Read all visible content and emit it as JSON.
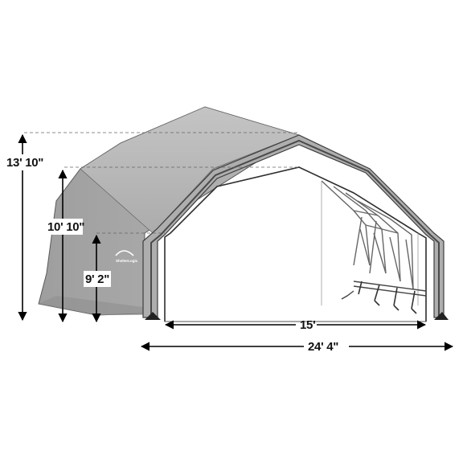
{
  "dimensions": {
    "overall_height": "13' 10\"",
    "ridge_height": "10' 10\"",
    "side_height": "9' 2\"",
    "door_width": "15'",
    "overall_width": "24' 4\""
  },
  "logo": {
    "text": "ShelterLogic"
  },
  "colors": {
    "cover": "#b9b9b9",
    "cover_dark": "#9a9a9a",
    "frame": "#4a4a4a",
    "arrows": "#000000",
    "dashed": "#666666"
  }
}
